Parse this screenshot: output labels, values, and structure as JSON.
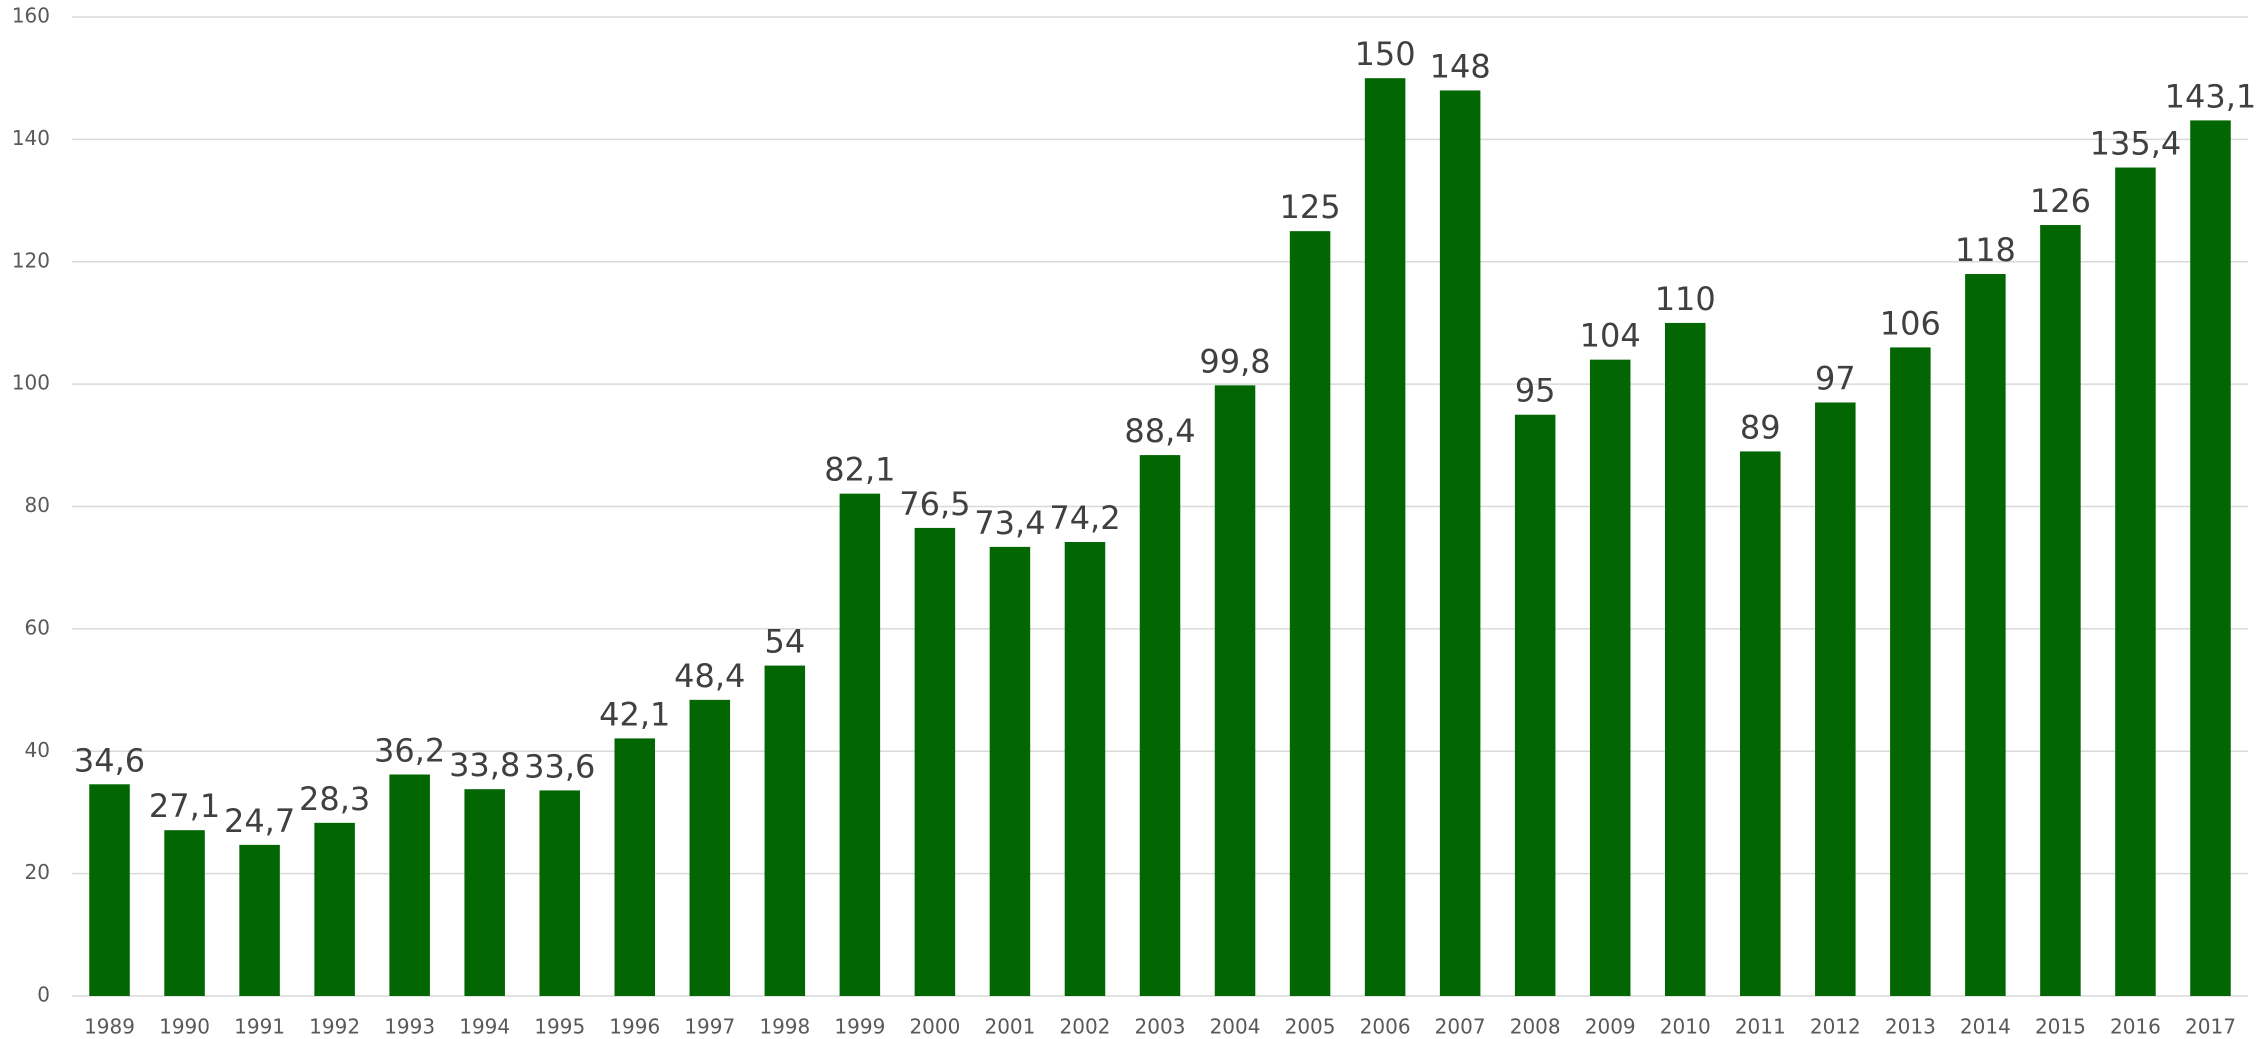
{
  "chart_data": {
    "type": "bar",
    "categories": [
      "1989",
      "1990",
      "1991",
      "1992",
      "1993",
      "1994",
      "1995",
      "1996",
      "1997",
      "1998",
      "1999",
      "2000",
      "2001",
      "2002",
      "2003",
      "2004",
      "2005",
      "2006",
      "2007",
      "2008",
      "2009",
      "2010",
      "2011",
      "2012",
      "2013",
      "2014",
      "2015",
      "2016",
      "2017"
    ],
    "values": [
      34.6,
      27.1,
      24.7,
      28.3,
      36.2,
      33.8,
      33.6,
      42.1,
      48.4,
      54,
      82.1,
      76.5,
      73.4,
      74.2,
      88.4,
      99.8,
      125,
      150,
      148,
      95,
      104,
      110,
      89,
      97,
      106,
      118,
      126,
      135.4,
      143.1
    ],
    "value_labels": [
      "34,6",
      "27,1",
      "24,7",
      "28,3",
      "36,2",
      "33,8",
      "33,6",
      "42,1",
      "48,4",
      "54",
      "82,1",
      "76,5",
      "73,4",
      "74,2",
      "88,4",
      "99,8",
      "125",
      "150",
      "148",
      "95",
      "104",
      "110",
      "89",
      "97",
      "106",
      "118",
      "126",
      "135,4",
      "143,1"
    ],
    "color": "#026702",
    "ylim": [
      0,
      160
    ],
    "yticks": [
      0,
      20,
      40,
      60,
      80,
      100,
      120,
      140,
      160
    ],
    "grid": true
  }
}
